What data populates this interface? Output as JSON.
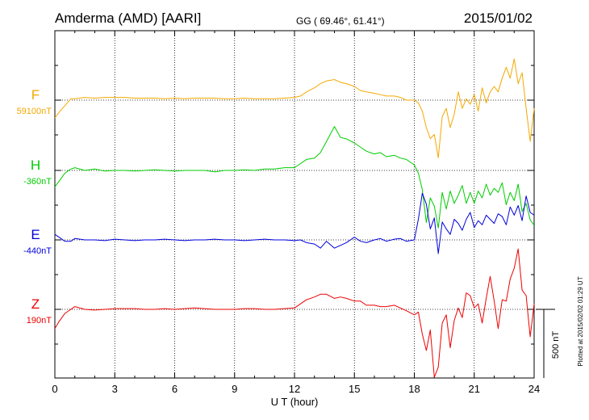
{
  "header": {
    "station": "Amderma (AMD)  [AARI]",
    "coords": "GG ( 69.46°,  61.41°)",
    "date": "2015/01/02"
  },
  "footer": {
    "plotted": "Plotted at 2015/02/02 01:29 UT"
  },
  "chart_data": {
    "type": "line",
    "xlabel": "U T (hour)",
    "xlim": [
      0,
      24
    ],
    "xticks": [
      "0",
      "3",
      "6",
      "9",
      "12",
      "15",
      "18",
      "21",
      "24"
    ],
    "grid": "dotted vertical lines every 3 hours, dotted baseline per component",
    "scale_bar": {
      "label": "500 nT",
      "value_nT": 500
    },
    "x": [
      0,
      0.2,
      0.5,
      0.8,
      1,
      1.5,
      2,
      2.5,
      3,
      3.5,
      4,
      4.5,
      5,
      5.5,
      6,
      6.5,
      7,
      7.5,
      8,
      8.5,
      9,
      9.5,
      10,
      10.5,
      11,
      11.5,
      12,
      12.3,
      12.6,
      13,
      13.3,
      13.6,
      14,
      14.3,
      14.6,
      15,
      15.3,
      15.6,
      16,
      16.3,
      16.6,
      17,
      17.3,
      17.6,
      18,
      18.2,
      18.4,
      18.6,
      18.8,
      19,
      19.2,
      19.4,
      19.6,
      19.8,
      20,
      20.2,
      20.4,
      20.6,
      20.8,
      21,
      21.2,
      21.4,
      21.6,
      21.8,
      22,
      22.2,
      22.4,
      22.6,
      22.8,
      23,
      23.2,
      23.4,
      23.6,
      23.8,
      24
    ],
    "series": [
      {
        "name": "F",
        "baseline_label": "59100nT",
        "color": "#f5a800",
        "values": [
          -130,
          -90,
          -40,
          10,
          10,
          20,
          15,
          20,
          20,
          20,
          15,
          15,
          15,
          10,
          15,
          10,
          15,
          15,
          15,
          10,
          10,
          15,
          10,
          10,
          10,
          15,
          20,
          30,
          60,
          90,
          120,
          140,
          150,
          130,
          120,
          100,
          70,
          60,
          50,
          40,
          30,
          30,
          20,
          0,
          0,
          -20,
          -80,
          -200,
          -280,
          -250,
          -420,
          -120,
          -60,
          -200,
          -100,
          60,
          -60,
          10,
          -30,
          40,
          -80,
          90,
          -20,
          60,
          100,
          60,
          160,
          240,
          160,
          300,
          120,
          200,
          -60,
          -300,
          -60
        ]
      },
      {
        "name": "H",
        "baseline_label": "-360nT",
        "color": "#00cc00",
        "values": [
          -120,
          -80,
          -20,
          10,
          20,
          0,
          10,
          -5,
          0,
          0,
          -5,
          0,
          5,
          0,
          -5,
          0,
          0,
          0,
          -10,
          0,
          0,
          5,
          0,
          10,
          10,
          20,
          20,
          50,
          80,
          90,
          130,
          210,
          320,
          240,
          230,
          200,
          170,
          140,
          120,
          130,
          100,
          110,
          90,
          80,
          40,
          -20,
          -140,
          -380,
          -200,
          -260,
          -420,
          -160,
          -280,
          -150,
          -240,
          -180,
          -110,
          -240,
          -160,
          -240,
          -150,
          -200,
          -100,
          -180,
          -130,
          -160,
          -90,
          -250,
          -160,
          -220,
          -100,
          -300,
          -240,
          -360,
          -400
        ]
      },
      {
        "name": "E",
        "baseline_label": "-440nT",
        "color": "#0000dd",
        "values": [
          40,
          20,
          -10,
          -10,
          10,
          0,
          0,
          -5,
          5,
          0,
          -5,
          0,
          0,
          5,
          0,
          -5,
          0,
          0,
          5,
          0,
          0,
          -5,
          0,
          5,
          0,
          0,
          -5,
          0,
          -20,
          -30,
          -60,
          -10,
          -60,
          -40,
          -20,
          20,
          -10,
          -20,
          0,
          10,
          -10,
          5,
          10,
          -10,
          0,
          150,
          340,
          260,
          80,
          160,
          -100,
          130,
          80,
          40,
          150,
          120,
          70,
          150,
          200,
          90,
          140,
          110,
          180,
          150,
          120,
          190,
          170,
          110,
          240,
          180,
          250,
          140,
          320,
          200,
          180
        ]
      },
      {
        "name": "Z",
        "baseline_label": "190nT",
        "color": "#ee0000",
        "values": [
          -140,
          -90,
          -30,
          0,
          20,
          0,
          -5,
          0,
          5,
          5,
          5,
          0,
          0,
          5,
          0,
          5,
          10,
          5,
          0,
          0,
          0,
          5,
          5,
          0,
          0,
          5,
          10,
          40,
          70,
          90,
          110,
          110,
          80,
          90,
          80,
          60,
          60,
          30,
          30,
          20,
          20,
          30,
          10,
          -10,
          -40,
          -20,
          -180,
          -300,
          -150,
          -560,
          -420,
          -100,
          -40,
          -280,
          -80,
          10,
          -60,
          120,
          100,
          10,
          40,
          -100,
          80,
          240,
          60,
          -140,
          70,
          60,
          220,
          300,
          440,
          140,
          100,
          -200,
          40
        ]
      }
    ]
  }
}
